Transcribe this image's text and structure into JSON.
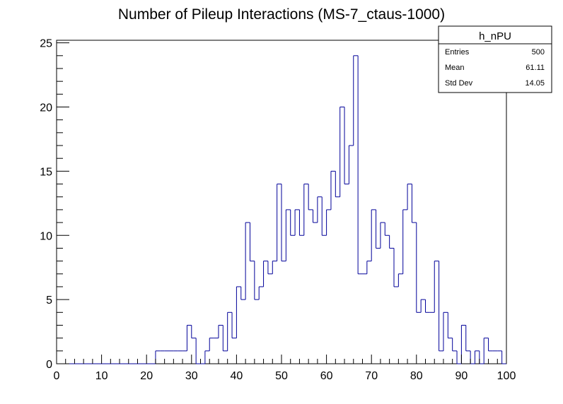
{
  "chart_data": {
    "type": "bar",
    "title": "Number of Pileup Interactions (MS-7_ctaus-1000)",
    "xlabel": "",
    "ylabel": "",
    "xlim": [
      0,
      100
    ],
    "ylim": [
      0,
      25.2
    ],
    "x_ticks": [
      "0",
      "10",
      "20",
      "30",
      "40",
      "50",
      "60",
      "70",
      "80",
      "90",
      "100"
    ],
    "y_ticks": [
      "0",
      "5",
      "10",
      "15",
      "20",
      "25"
    ],
    "bin_width": 1,
    "bins_x": [
      0,
      1,
      2,
      3,
      4,
      5,
      6,
      7,
      8,
      9,
      10,
      11,
      12,
      13,
      14,
      15,
      16,
      17,
      18,
      19,
      20,
      21,
      22,
      23,
      24,
      25,
      26,
      27,
      28,
      29,
      30,
      31,
      32,
      33,
      34,
      35,
      36,
      37,
      38,
      39,
      40,
      41,
      42,
      43,
      44,
      45,
      46,
      47,
      48,
      49,
      50,
      51,
      52,
      53,
      54,
      55,
      56,
      57,
      58,
      59,
      60,
      61,
      62,
      63,
      64,
      65,
      66,
      67,
      68,
      69,
      70,
      71,
      72,
      73,
      74,
      75,
      76,
      77,
      78,
      79,
      80,
      81,
      82,
      83,
      84,
      85,
      86,
      87,
      88,
      89,
      90,
      91,
      92,
      93,
      94,
      95,
      96,
      97,
      98,
      99
    ],
    "values": [
      0,
      0,
      0,
      0,
      0,
      0,
      0,
      0,
      0,
      0,
      0,
      0,
      0,
      0,
      0,
      0,
      0,
      0,
      0,
      0,
      0,
      0,
      1,
      1,
      1,
      1,
      1,
      1,
      1,
      3,
      2,
      0,
      0,
      1,
      2,
      2,
      3,
      1,
      4,
      2,
      6,
      5,
      11,
      8,
      5,
      6,
      8,
      7,
      8,
      14,
      8,
      12,
      10,
      12,
      10,
      14,
      12,
      11,
      13,
      10,
      12,
      15,
      13,
      20,
      14,
      17,
      24,
      7,
      7,
      8,
      12,
      9,
      11,
      10,
      9,
      6,
      7,
      12,
      14,
      11,
      4,
      5,
      4,
      4,
      8,
      1,
      4,
      2,
      1,
      0,
      3,
      1,
      0,
      1,
      0,
      2,
      1,
      1,
      1,
      0
    ],
    "series": [
      {
        "name": "h_nPU",
        "color": "#000099"
      }
    ],
    "stats_box": {
      "name": "h_nPU",
      "rows": [
        {
          "label": "Entries",
          "value": "500"
        },
        {
          "label": "Mean",
          "value": "61.11"
        },
        {
          "label": "Std Dev",
          "value": "14.05"
        }
      ]
    },
    "grid": false,
    "legend": "top-right"
  }
}
